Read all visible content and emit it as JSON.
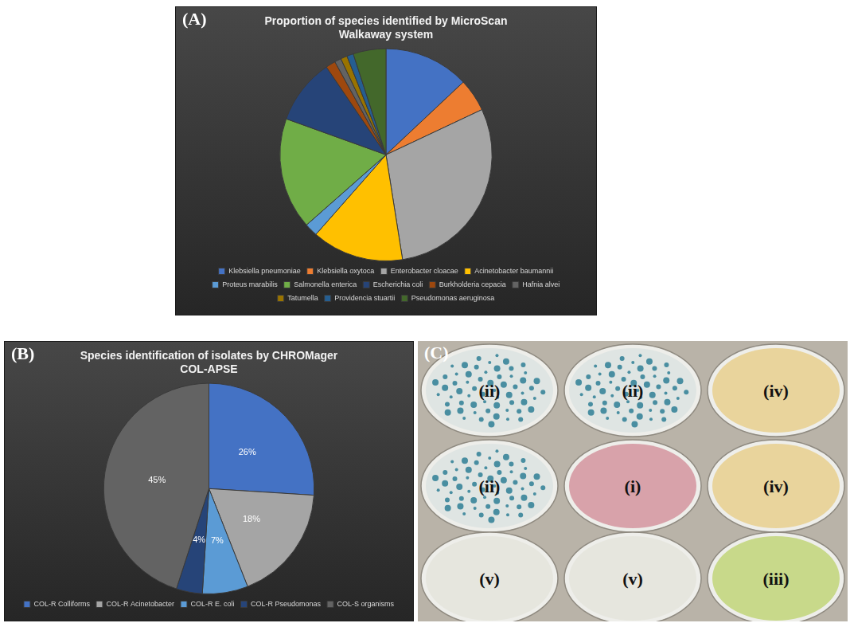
{
  "chart_data": [
    {
      "type": "pie",
      "panel_label": "(A)",
      "title": [
        "Proportion of species identified by MicroScan",
        "Walkaway system"
      ],
      "categories": [
        "Klebsiella pneumoniae",
        "Klebsiella oxytoca",
        "Enterobacter cloacae",
        "Acinetobacter baumannii",
        "Proteus marabilis",
        "Salmonella enterica",
        "Escherichia coli",
        "Burkholderia cepacia",
        "Hafnia alvei",
        "Tatumella",
        "Providencia stuartii",
        "Pseudomonas aeruginosa"
      ],
      "values": [
        13,
        5,
        29.5,
        14,
        2,
        17,
        10,
        1.5,
        1,
        1,
        1,
        5
      ],
      "colors": [
        "#4472c4",
        "#ed7d31",
        "#a5a5a5",
        "#ffc000",
        "#5b9bd5",
        "#70ad47",
        "#264478",
        "#9e480e",
        "#636363",
        "#997300",
        "#255e91",
        "#43682b"
      ],
      "legend": "bottom",
      "data_labels": false
    },
    {
      "type": "pie",
      "panel_label": "(B)",
      "title": [
        "Species identification of isolates by CHROMager",
        "COL-APSE"
      ],
      "categories": [
        "COL-R Colliforms",
        "COL-R Acinetobacter",
        "COL-R E. coli",
        "COL-R Pseudomonas",
        "COL-S organisms"
      ],
      "values": [
        26,
        18,
        7,
        4,
        45
      ],
      "value_labels": [
        "26%",
        "18%",
        "7%",
        "4%",
        "45%"
      ],
      "colors": [
        "#4472c4",
        "#a5a5a5",
        "#5b9bd5",
        "#264478",
        "#636363"
      ],
      "legend": "bottom",
      "data_labels": true
    }
  ],
  "photo": {
    "panel_label": "(C)",
    "plates": [
      {
        "label": "(ii)",
        "color": "#dfe5e3",
        "marker": "dots"
      },
      {
        "label": "(ii)",
        "color": "#dfe5e3",
        "marker": "dots"
      },
      {
        "label": "(iv)",
        "color": "#e9d49c"
      },
      {
        "label": "(ii)",
        "color": "#dfe5e3",
        "marker": "dots"
      },
      {
        "label": "(i)",
        "color": "#d8a2aa"
      },
      {
        "label": "(iv)",
        "color": "#e9d49c"
      },
      {
        "label": "(v)",
        "color": "#e6e6de"
      },
      {
        "label": "(v)",
        "color": "#e6e6de"
      },
      {
        "label": "(iii)",
        "color": "#c8d98a"
      }
    ]
  }
}
